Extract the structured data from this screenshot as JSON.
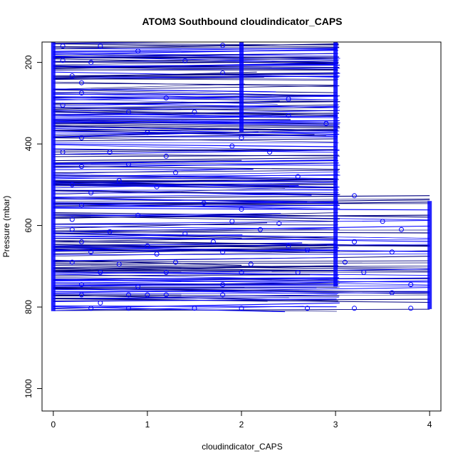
{
  "chart_data": {
    "type": "line",
    "title": "ATOM3 Southbound cloudindicator_CAPS",
    "xlabel": "cloudindicator_CAPS",
    "ylabel": "Pressure (mbar)",
    "xlim": [
      -0.12,
      4.12
    ],
    "ylim": [
      1055,
      150
    ],
    "y_reversed": true,
    "x_ticks": [
      0,
      1,
      2,
      3,
      4
    ],
    "y_ticks": [
      200,
      400,
      600,
      800,
      1000
    ],
    "x_tick_labels": [
      "0",
      "1",
      "2",
      "3",
      "4"
    ],
    "y_tick_labels": [
      "200",
      "400",
      "600",
      "800",
      "1000"
    ],
    "grid": false,
    "legend": "none",
    "series_color": "#0000ff",
    "profile_color": "#000080",
    "marker": "open-circle",
    "pressure_range": [
      150,
      810
    ],
    "dense_columns": [
      {
        "x": 0,
        "p_min": 150,
        "p_max": 810
      },
      {
        "x": 2,
        "p_min": 150,
        "p_max": 370
      },
      {
        "x": 3,
        "p_min": 150,
        "p_max": 750
      },
      {
        "x": 4,
        "p_min": 540,
        "p_max": 805
      }
    ],
    "tail_to_x4_p_min": 525,
    "series": [
      {
        "name": "",
        "points": [
          {
            "x": 0.1,
            "p": 160
          },
          {
            "x": 0.5,
            "p": 160
          },
          {
            "x": 0.9,
            "p": 172
          },
          {
            "x": 1.8,
            "p": 158
          },
          {
            "x": 0.1,
            "p": 195
          },
          {
            "x": 0.4,
            "p": 200
          },
          {
            "x": 1.4,
            "p": 196
          },
          {
            "x": 1.8,
            "p": 226
          },
          {
            "x": 0.2,
            "p": 233
          },
          {
            "x": 0.3,
            "p": 250
          },
          {
            "x": 0.3,
            "p": 275
          },
          {
            "x": 1.2,
            "p": 287
          },
          {
            "x": 0.1,
            "p": 305
          },
          {
            "x": 0.8,
            "p": 322
          },
          {
            "x": 1.5,
            "p": 322
          },
          {
            "x": 2.5,
            "p": 290
          },
          {
            "x": 2.5,
            "p": 330
          },
          {
            "x": 2.9,
            "p": 350
          },
          {
            "x": 0.3,
            "p": 385
          },
          {
            "x": 1.0,
            "p": 372
          },
          {
            "x": 2.0,
            "p": 385
          },
          {
            "x": 1.9,
            "p": 405
          },
          {
            "x": 0.1,
            "p": 420
          },
          {
            "x": 0.6,
            "p": 420
          },
          {
            "x": 1.2,
            "p": 430
          },
          {
            "x": 2.3,
            "p": 420
          },
          {
            "x": 0.3,
            "p": 455
          },
          {
            "x": 0.8,
            "p": 450
          },
          {
            "x": 1.3,
            "p": 470
          },
          {
            "x": 0.2,
            "p": 500
          },
          {
            "x": 0.7,
            "p": 490
          },
          {
            "x": 1.1,
            "p": 505
          },
          {
            "x": 2.6,
            "p": 480
          },
          {
            "x": 0.4,
            "p": 520
          },
          {
            "x": 0.3,
            "p": 550
          },
          {
            "x": 1.6,
            "p": 545
          },
          {
            "x": 2.0,
            "p": 560
          },
          {
            "x": 3.2,
            "p": 527
          },
          {
            "x": 0.2,
            "p": 585
          },
          {
            "x": 0.9,
            "p": 575
          },
          {
            "x": 1.9,
            "p": 590
          },
          {
            "x": 2.4,
            "p": 595
          },
          {
            "x": 3.5,
            "p": 590
          },
          {
            "x": 0.2,
            "p": 610
          },
          {
            "x": 0.6,
            "p": 615
          },
          {
            "x": 1.4,
            "p": 620
          },
          {
            "x": 2.2,
            "p": 610
          },
          {
            "x": 3.7,
            "p": 610
          },
          {
            "x": 0.3,
            "p": 640
          },
          {
            "x": 1.0,
            "p": 650
          },
          {
            "x": 1.7,
            "p": 640
          },
          {
            "x": 2.5,
            "p": 650
          },
          {
            "x": 3.2,
            "p": 640
          },
          {
            "x": 0.4,
            "p": 665
          },
          {
            "x": 1.1,
            "p": 670
          },
          {
            "x": 1.8,
            "p": 665
          },
          {
            "x": 2.7,
            "p": 660
          },
          {
            "x": 3.6,
            "p": 665
          },
          {
            "x": 0.2,
            "p": 690
          },
          {
            "x": 0.7,
            "p": 695
          },
          {
            "x": 1.3,
            "p": 690
          },
          {
            "x": 2.1,
            "p": 695
          },
          {
            "x": 3.1,
            "p": 690
          },
          {
            "x": 0.5,
            "p": 715
          },
          {
            "x": 1.2,
            "p": 715
          },
          {
            "x": 2.0,
            "p": 715
          },
          {
            "x": 2.6,
            "p": 715
          },
          {
            "x": 3.3,
            "p": 715
          },
          {
            "x": 0.3,
            "p": 745
          },
          {
            "x": 0.9,
            "p": 750
          },
          {
            "x": 1.8,
            "p": 745
          },
          {
            "x": 3.8,
            "p": 745
          },
          {
            "x": 0.3,
            "p": 770
          },
          {
            "x": 0.8,
            "p": 770
          },
          {
            "x": 1.0,
            "p": 770
          },
          {
            "x": 1.2,
            "p": 770
          },
          {
            "x": 1.8,
            "p": 770
          },
          {
            "x": 3.6,
            "p": 765
          },
          {
            "x": 0.5,
            "p": 790
          },
          {
            "x": 0.4,
            "p": 803
          },
          {
            "x": 0.8,
            "p": 803
          },
          {
            "x": 1.5,
            "p": 803
          },
          {
            "x": 2.0,
            "p": 803
          },
          {
            "x": 2.7,
            "p": 803
          },
          {
            "x": 3.2,
            "p": 803
          },
          {
            "x": 3.8,
            "p": 803
          }
        ]
      }
    ]
  }
}
